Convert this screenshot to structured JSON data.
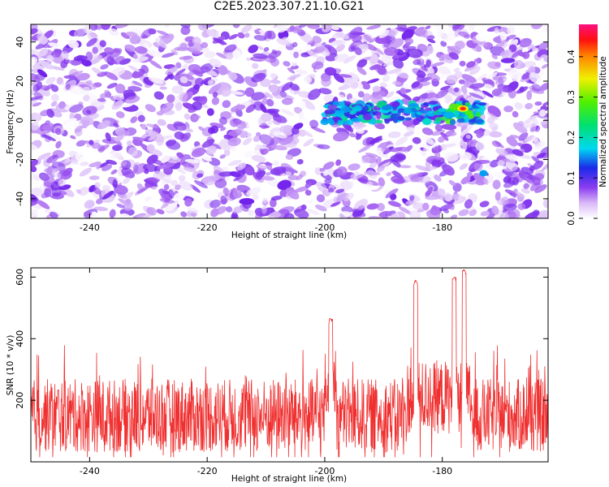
{
  "title": "C2E5.2023.307.21.10.G21",
  "colors": {
    "snr_line": "#f03030",
    "frame": "#000000"
  },
  "chart_data": [
    {
      "type": "heatmap",
      "xlabel": "Height of straight line (km)",
      "ylabel": "Frequency (Hz)",
      "xlim": [
        -250,
        -162
      ],
      "ylim": [
        -50,
        49
      ],
      "xticks": [
        -240,
        -220,
        -200,
        -180
      ],
      "yticks": [
        -40,
        -20,
        0,
        20,
        40
      ],
      "colorbar": {
        "label": "Normalized spectral amplitude",
        "range": [
          0,
          0.48
        ],
        "ticks": [
          0.0,
          0.1,
          0.2,
          0.3,
          0.4
        ],
        "colormap": "white-purple-blue-cyan-green-yellow-red-magenta"
      },
      "background_amplitude": [
        0.0,
        0.12
      ],
      "signal_track": {
        "x_range": [
          -200,
          -173
        ],
        "frequency": 4,
        "peak_amplitude": 0.45,
        "peak_x": -176.5,
        "peak_frequency": 6
      }
    },
    {
      "type": "line",
      "xlabel": "Height of straight line (km)",
      "ylabel": "SNR (10 * v/v)",
      "xlim": [
        -250,
        -162
      ],
      "ylim": [
        0,
        630
      ],
      "xticks": [
        -240,
        -220,
        -200,
        -180
      ],
      "yticks": [
        200,
        400,
        600
      ],
      "series": [
        {
          "baseline": 150,
          "noise_range": [
            15,
            420
          ],
          "peaks": [
            {
              "x": -199,
              "y": 465
            },
            {
              "x": -184.5,
              "y": 590
            },
            {
              "x": -178,
              "y": 600
            },
            {
              "x": -176.3,
              "y": 625
            }
          ]
        }
      ]
    }
  ]
}
